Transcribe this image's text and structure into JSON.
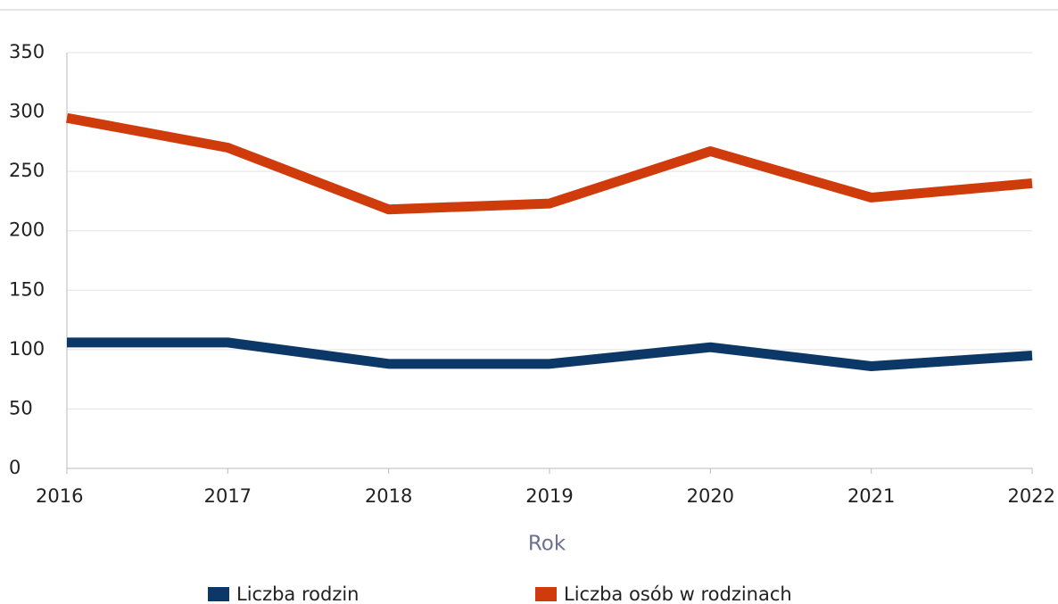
{
  "chart_data": {
    "type": "line",
    "x": [
      2016,
      2017,
      2018,
      2019,
      2020,
      2021,
      2022
    ],
    "xlim": [
      2016,
      2022
    ],
    "xticks": [
      2016,
      2017,
      2018,
      2019,
      2020,
      2021,
      2022
    ],
    "ylim": [
      0,
      350
    ],
    "yticks": [
      0,
      50,
      100,
      150,
      200,
      250,
      300,
      350
    ],
    "x_label": "Rok",
    "grid": true,
    "legend": "bottom",
    "series": [
      {
        "name": "Liczba rodzin",
        "color": "#0b3866",
        "values": [
          106,
          106,
          88,
          88,
          102,
          86,
          95
        ]
      },
      {
        "name": "Liczba osób w rodzinach",
        "color": "#d03b0c",
        "values": [
          295,
          270,
          218,
          223,
          267,
          228,
          240
        ]
      }
    ]
  }
}
